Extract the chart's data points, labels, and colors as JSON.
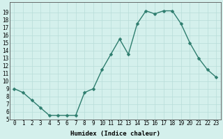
{
  "x": [
    0,
    1,
    2,
    3,
    4,
    5,
    6,
    7,
    8,
    9,
    10,
    11,
    12,
    13,
    14,
    15,
    16,
    17,
    18,
    19,
    20,
    21,
    22,
    23
  ],
  "y": [
    9,
    8.5,
    7.5,
    6.5,
    5.5,
    5.5,
    5.5,
    5.5,
    8.5,
    9.0,
    11.5,
    13.5,
    15.5,
    13.5,
    17.5,
    19.2,
    18.8,
    19.2,
    19.2,
    17.5,
    15,
    13,
    11.5,
    10.5
  ],
  "line_color": "#2e7d6e",
  "marker_color": "#2e7d6e",
  "bg_color": "#d4f0ec",
  "grid_color": "#b8ddd8",
  "xlabel": "Humidex (Indice chaleur)",
  "ylim": [
    5,
    20
  ],
  "xlim_min": -0.5,
  "xlim_max": 23.5,
  "yticks": [
    5,
    6,
    7,
    8,
    9,
    10,
    11,
    12,
    13,
    14,
    15,
    16,
    17,
    18,
    19
  ],
  "xticks": [
    0,
    1,
    2,
    3,
    4,
    5,
    6,
    7,
    8,
    9,
    10,
    11,
    12,
    13,
    14,
    15,
    16,
    17,
    18,
    19,
    20,
    21,
    22,
    23
  ],
  "tick_fontsize": 5.5,
  "xlabel_fontsize": 6.5,
  "marker_size": 2.5,
  "line_width": 1.0
}
